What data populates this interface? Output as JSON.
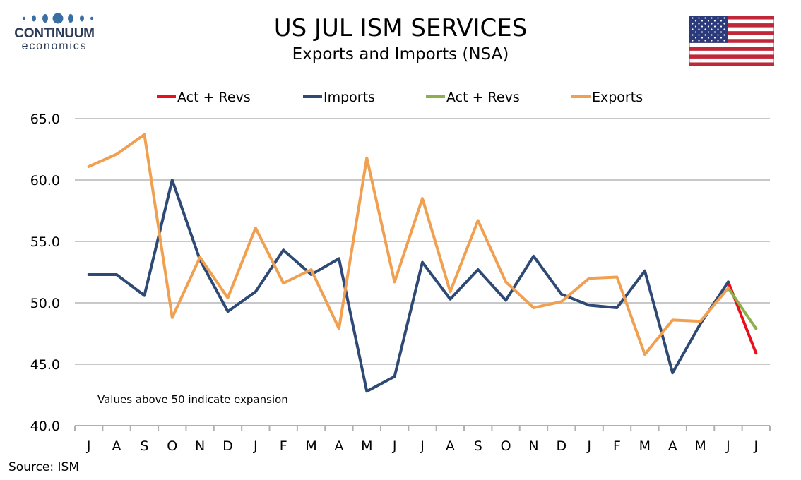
{
  "header": {
    "logo_top": "CONTINUUM",
    "logo_bottom": "economics",
    "title": "US JUL ISM SERVICES",
    "subtitle": "Exports and Imports (NSA)",
    "flag_icon": "us-flag-icon"
  },
  "footer": {
    "source": "Source: ISM"
  },
  "colors": {
    "imports": "#2e4a74",
    "exports": "#f0a050",
    "act_revs_imports": "#e8101c",
    "act_revs_exports": "#8db04c",
    "grid": "#c8c8c8",
    "logo": "#3a6ea5"
  },
  "chart_data": {
    "type": "line",
    "categories": [
      "J",
      "A",
      "S",
      "O",
      "N",
      "D",
      "J",
      "F",
      "M",
      "A",
      "M",
      "J",
      "J",
      "A",
      "S",
      "O",
      "N",
      "D",
      "J",
      "F",
      "M",
      "A",
      "M",
      "J",
      "J"
    ],
    "ylim": [
      40,
      65
    ],
    "yticks": [
      "40.0",
      "45.0",
      "50.0",
      "55.0",
      "60.0",
      "65.0"
    ],
    "grid": "horizontal",
    "legend_position": "top",
    "annotation": "Values above 50 indicate expansion",
    "series": [
      {
        "name": "Act + Revs",
        "color": "#e8101c",
        "values": [
          null,
          null,
          null,
          null,
          null,
          null,
          null,
          null,
          null,
          null,
          null,
          null,
          null,
          null,
          null,
          null,
          null,
          null,
          null,
          null,
          null,
          null,
          null,
          51.7,
          45.9
        ]
      },
      {
        "name": "Imports",
        "color": "#2e4a74",
        "values": [
          52.3,
          52.3,
          50.6,
          60.0,
          53.5,
          49.3,
          50.9,
          54.3,
          52.3,
          53.6,
          42.8,
          44.0,
          53.3,
          50.3,
          52.7,
          50.2,
          53.8,
          50.7,
          49.8,
          49.6,
          52.6,
          44.3,
          48.3,
          51.7,
          null
        ]
      },
      {
        "name": "Act + Revs",
        "color": "#8db04c",
        "values": [
          null,
          null,
          null,
          null,
          null,
          null,
          null,
          null,
          null,
          null,
          null,
          null,
          null,
          null,
          null,
          null,
          null,
          null,
          null,
          null,
          null,
          null,
          null,
          51.2,
          47.9
        ]
      },
      {
        "name": "Exports",
        "color": "#f0a050",
        "values": [
          61.1,
          62.1,
          63.7,
          48.8,
          53.7,
          50.4,
          56.1,
          51.6,
          52.7,
          47.9,
          61.8,
          51.7,
          58.5,
          50.9,
          56.7,
          51.7,
          49.6,
          50.1,
          52.0,
          52.1,
          45.8,
          48.6,
          48.5,
          51.2,
          null
        ]
      }
    ]
  }
}
